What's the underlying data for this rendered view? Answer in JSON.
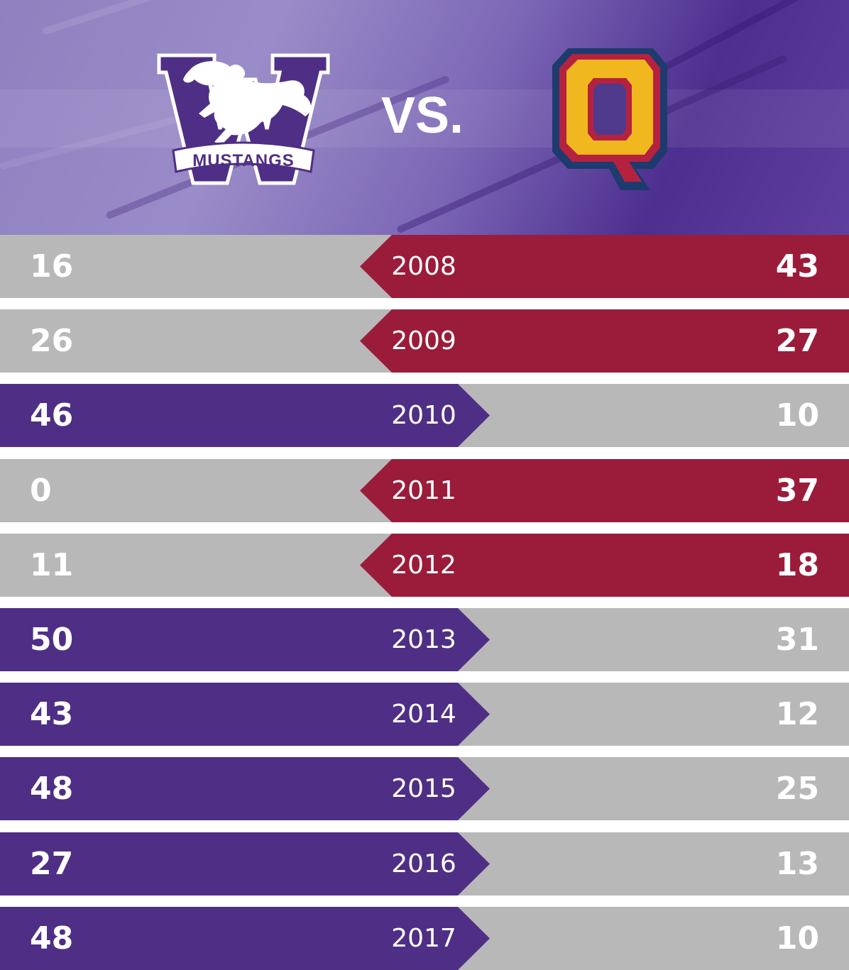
{
  "header": {
    "left_team_logo_text": "MUSTANGS",
    "versus_label": "VS.",
    "right_team_logo_letter": "Q"
  },
  "colors": {
    "mustangs_purple": "#4f2f85",
    "queens_red": "#9b1c3a",
    "loss_gray": "#b8b8b8",
    "q_gold": "#f0b81e",
    "q_navy": "#1d3b6e"
  },
  "games": [
    {
      "year": "2008",
      "mustangs": "16",
      "queens": "43",
      "winner": "queens"
    },
    {
      "year": "2009",
      "mustangs": "26",
      "queens": "27",
      "winner": "queens"
    },
    {
      "year": "2010",
      "mustangs": "46",
      "queens": "10",
      "winner": "mustangs"
    },
    {
      "year": "2011",
      "mustangs": "0",
      "queens": "37",
      "winner": "queens"
    },
    {
      "year": "2012",
      "mustangs": "11",
      "queens": "18",
      "winner": "queens"
    },
    {
      "year": "2013",
      "mustangs": "50",
      "queens": "31",
      "winner": "mustangs"
    },
    {
      "year": "2014",
      "mustangs": "43",
      "queens": "12",
      "winner": "mustangs"
    },
    {
      "year": "2015",
      "mustangs": "48",
      "queens": "25",
      "winner": "mustangs"
    },
    {
      "year": "2016",
      "mustangs": "27",
      "queens": "13",
      "winner": "mustangs"
    },
    {
      "year": "2017",
      "mustangs": "48",
      "queens": "10",
      "winner": "mustangs"
    }
  ]
}
